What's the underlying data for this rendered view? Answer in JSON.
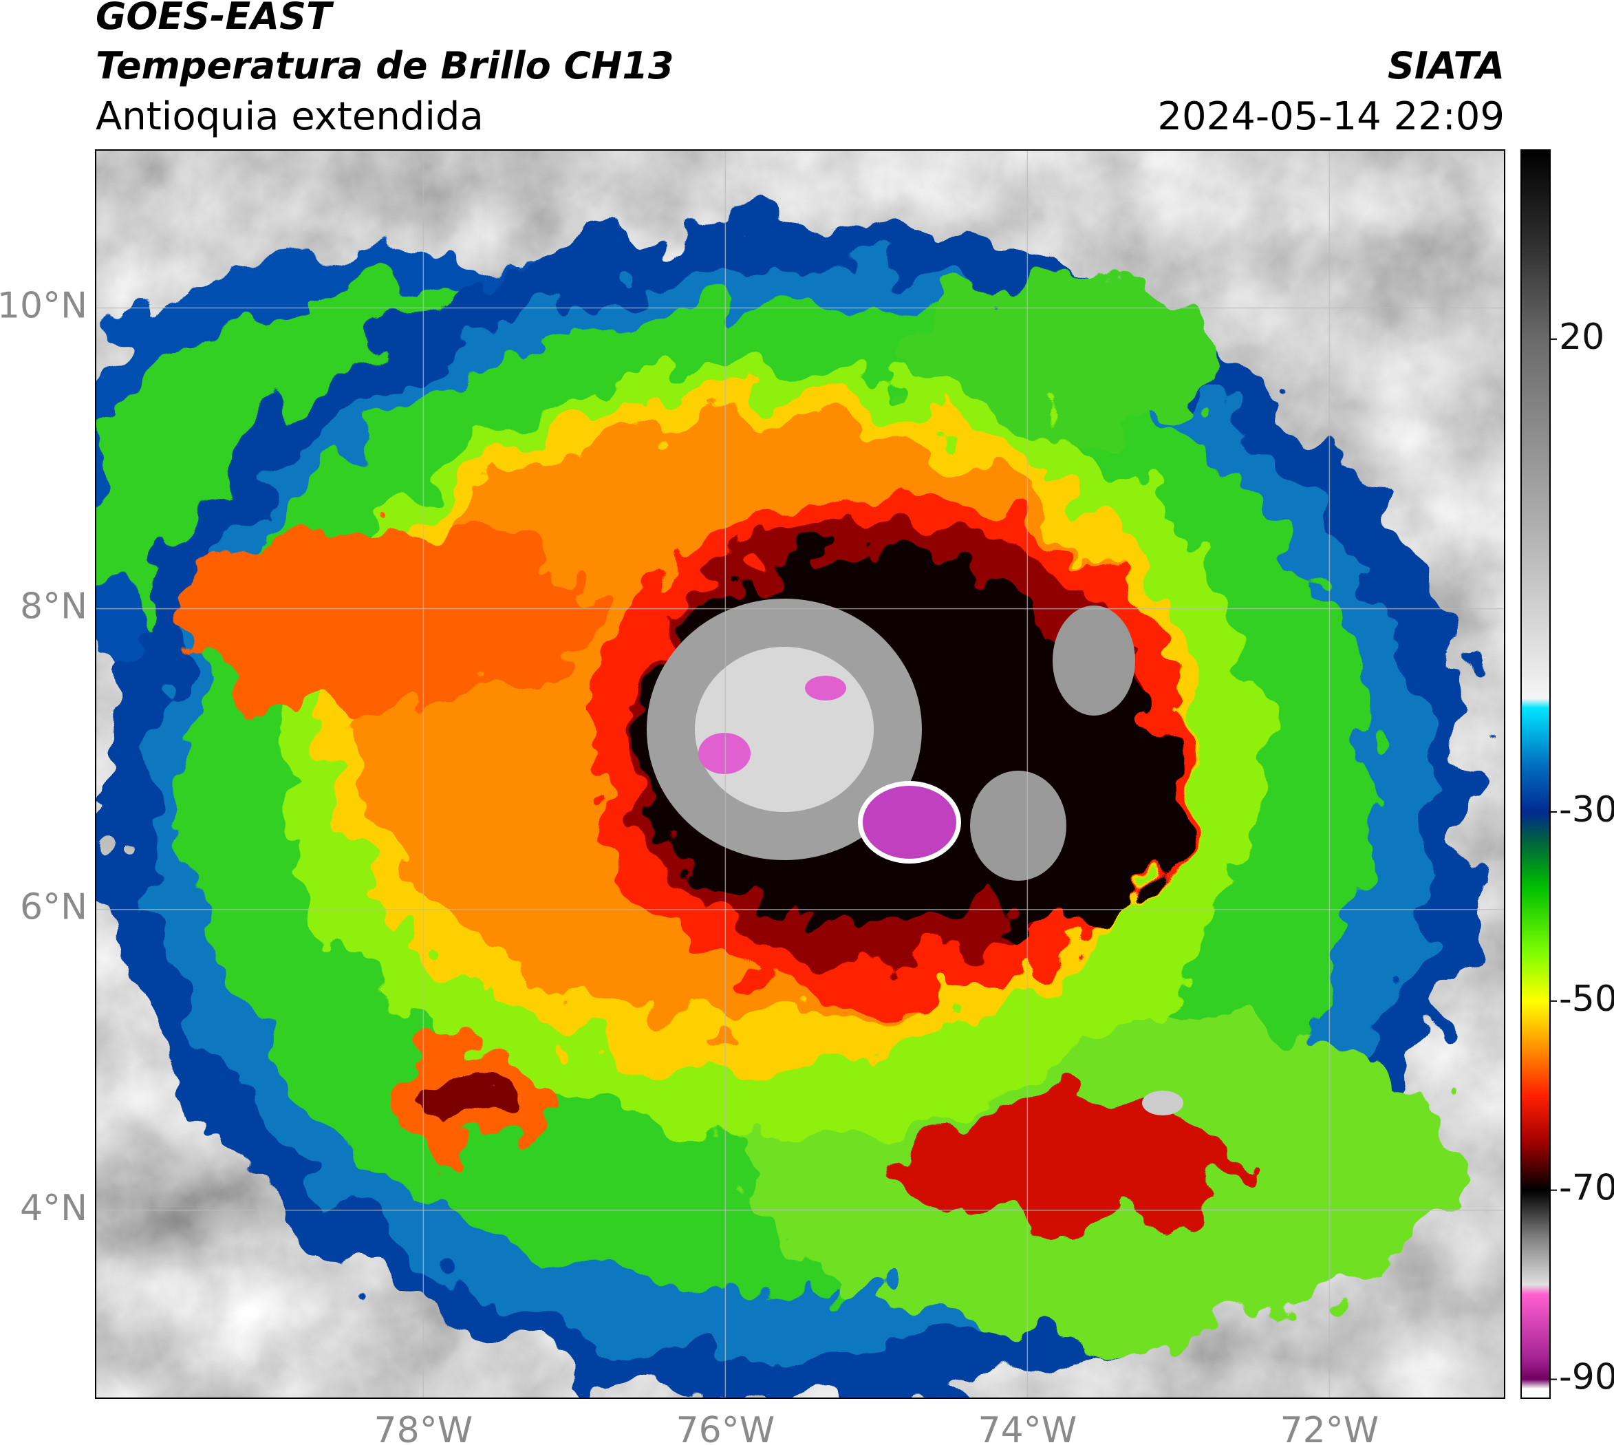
{
  "chart_data": {
    "type": "map",
    "title": "GOES-EAST",
    "subtitle": "Temperatura de Brillo CH13",
    "region": "Antioquia extendida",
    "source": "SIATA",
    "timestamp": "2024-05-14 22:09",
    "xlim": [
      -80.17,
      -70.84
    ],
    "ylim": [
      2.75,
      11.05
    ],
    "xticks": [
      {
        "value": -78,
        "label": "78°W"
      },
      {
        "value": -76,
        "label": "76°W"
      },
      {
        "value": -74,
        "label": "74°W"
      },
      {
        "value": -72,
        "label": "72°W"
      }
    ],
    "yticks": [
      {
        "value": 10,
        "label": "10°N"
      },
      {
        "value": 8,
        "label": "8°N"
      },
      {
        "value": 6,
        "label": "6°N"
      },
      {
        "value": 4,
        "label": "4°N"
      }
    ],
    "grid": true,
    "colorbar": {
      "lim": [
        -92,
        40
      ],
      "ticks": [
        20,
        -30,
        -50,
        -70,
        -90
      ],
      "colormap": [
        {
          "value": 40,
          "color": "#000000"
        },
        {
          "value": 30,
          "color": "#303030"
        },
        {
          "value": 20,
          "color": "#6a6a6a"
        },
        {
          "value": 0,
          "color": "#b0b0b0"
        },
        {
          "value": -18,
          "color": "#f5f5f5"
        },
        {
          "value": -19,
          "color": "#00e5ff"
        },
        {
          "value": -25,
          "color": "#0070c0"
        },
        {
          "value": -30,
          "color": "#002a90"
        },
        {
          "value": -33,
          "color": "#006040"
        },
        {
          "value": -38,
          "color": "#00c000"
        },
        {
          "value": -45,
          "color": "#80ff00"
        },
        {
          "value": -50,
          "color": "#ffff00"
        },
        {
          "value": -55,
          "color": "#ff9000"
        },
        {
          "value": -60,
          "color": "#ff2000"
        },
        {
          "value": -65,
          "color": "#a00000"
        },
        {
          "value": -70,
          "color": "#000000"
        },
        {
          "value": -75,
          "color": "#808080"
        },
        {
          "value": -80,
          "color": "#e0e0e0"
        },
        {
          "value": -81,
          "color": "#ff60d0"
        },
        {
          "value": -88,
          "color": "#a02090"
        },
        {
          "value": -90,
          "color": "#700060"
        },
        {
          "value": -91,
          "color": "#ffffff"
        }
      ]
    }
  }
}
